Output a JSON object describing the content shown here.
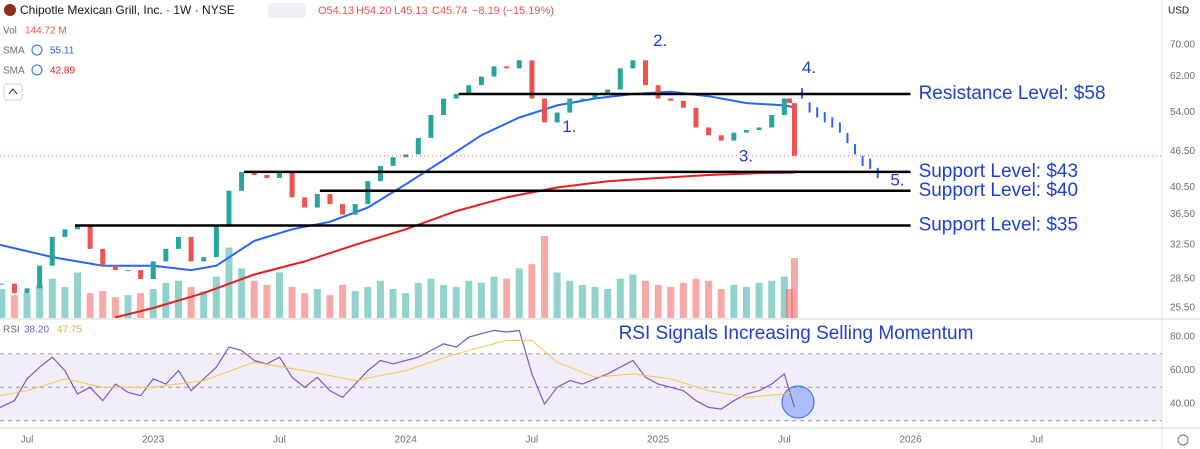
{
  "header": {
    "title": "Chipotle Mexican Grill, Inc. · 1W · NYSE",
    "open": "O54.13",
    "high": "H54.20",
    "low": "L45.13",
    "close": "C45.74",
    "change": "−8.19 (−15.19%)",
    "currency": "USD"
  },
  "chart_data": [
    {
      "type": "stock",
      "log_scale": true,
      "xlim": [
        2022.393,
        2026.996
      ],
      "xticks": [
        {
          "value": 2022.5,
          "label": "Jul"
        },
        {
          "value": 2023.0,
          "label": "2023"
        },
        {
          "value": 2023.5,
          "label": "Jul"
        },
        {
          "value": 2024.0,
          "label": "2024"
        },
        {
          "value": 2024.5,
          "label": "Jul"
        },
        {
          "value": 2025.0,
          "label": "2025"
        },
        {
          "value": 2025.5,
          "label": "Jul"
        },
        {
          "value": 2026.0,
          "label": "2026"
        },
        {
          "value": 2026.5,
          "label": "Jul"
        }
      ],
      "ylim": [
        24.54,
        83.2
      ],
      "yticks": [
        {
          "value": 70,
          "label": "70.00"
        },
        {
          "value": 62,
          "label": "62.00"
        },
        {
          "value": 54,
          "label": "54.00"
        },
        {
          "value": 46.5,
          "label": "46.50"
        },
        {
          "value": 40.5,
          "label": "40.50"
        },
        {
          "value": 36.5,
          "label": "36.50"
        },
        {
          "value": 32.5,
          "label": "32.50"
        },
        {
          "value": 28.5,
          "label": "28.50"
        },
        {
          "value": 25.5,
          "label": "25.50"
        }
      ],
      "up_color": "#26a69a",
      "down_color": "#ef5350",
      "x": [
        2022.4,
        2022.45,
        2022.5,
        2022.55,
        2022.6,
        2022.65,
        2022.7,
        2022.75,
        2022.8,
        2022.85,
        2022.9,
        2022.95,
        2023.0,
        2023.05,
        2023.1,
        2023.15,
        2023.2,
        2023.25,
        2023.3,
        2023.35,
        2023.4,
        2023.45,
        2023.5,
        2023.55,
        2023.6,
        2023.65,
        2023.7,
        2023.75,
        2023.8,
        2023.85,
        2023.9,
        2023.95,
        2024.0,
        2024.05,
        2024.1,
        2024.15,
        2024.2,
        2024.25,
        2024.3,
        2024.35,
        2024.4,
        2024.45,
        2024.5,
        2024.55,
        2024.6,
        2024.65,
        2024.7,
        2024.75,
        2024.8,
        2024.85,
        2024.9,
        2024.95,
        2025.0,
        2025.05,
        2025.1,
        2025.15,
        2025.2,
        2025.25,
        2025.3,
        2025.35,
        2025.4,
        2025.45,
        2025.5,
        2025.52,
        2025.54
      ],
      "values": [
        28,
        27,
        27.5,
        30,
        33.5,
        34.5,
        35,
        32,
        30,
        29.5,
        29.5,
        28.5,
        30.5,
        32,
        33.5,
        30.5,
        31,
        35,
        40,
        43,
        42.5,
        42,
        43,
        39,
        37.5,
        39.5,
        38,
        36.5,
        38,
        41.5,
        44,
        45.5,
        46,
        49,
        53.5,
        57,
        58,
        60,
        62,
        64.5,
        64,
        66,
        57,
        52,
        54,
        57,
        57,
        58,
        59,
        64,
        66,
        60,
        57,
        56.5,
        55,
        51,
        49.5,
        48.5,
        50,
        50.5,
        51,
        53.5,
        57,
        56,
        45.74
      ],
      "volume": {
        "name": "Vol",
        "value_label": "144.72 M",
        "values": [
          70,
          55,
          60,
          80,
          95,
          75,
          110,
          60,
          65,
          50,
          55,
          60,
          70,
          85,
          90,
          75,
          65,
          100,
          170,
          120,
          90,
          80,
          110,
          75,
          60,
          70,
          55,
          80,
          65,
          75,
          90,
          70,
          60,
          85,
          95,
          80,
          75,
          90,
          85,
          100,
          95,
          120,
          130,
          198,
          110,
          90,
          80,
          75,
          70,
          95,
          105,
          90,
          80,
          75,
          85,
          95,
          90,
          70,
          80,
          75,
          85,
          90,
          100,
          70,
          144.72
        ]
      },
      "indicators": [
        {
          "name": "SMA",
          "value_label": "55.11",
          "color": "#2962ff",
          "x": [
            2022.393,
            2022.6,
            2022.8,
            2023.0,
            2023.15,
            2023.25,
            2023.4,
            2023.55,
            2023.7,
            2023.85,
            2024.0,
            2024.15,
            2024.3,
            2024.45,
            2024.6,
            2024.75,
            2024.9,
            2025.05,
            2025.2,
            2025.35,
            2025.5,
            2025.54
          ],
          "values": [
            32.5,
            31,
            30,
            30,
            29.5,
            30,
            33,
            34.5,
            35.5,
            37.5,
            41,
            45,
            49.5,
            53,
            55.5,
            57,
            58,
            58.5,
            57.5,
            56,
            55.5,
            55.11
          ]
        },
        {
          "name": "SMA",
          "value_label": "42.89",
          "color": "#e91e1e",
          "x": [
            2022.85,
            2023.0,
            2023.2,
            2023.4,
            2023.6,
            2023.8,
            2024.0,
            2024.2,
            2024.4,
            2024.6,
            2024.8,
            2025.0,
            2025.2,
            2025.4,
            2025.54
          ],
          "values": [
            24.6,
            25.5,
            27,
            29,
            30.5,
            32.5,
            34.5,
            37,
            39,
            40.5,
            41.5,
            42,
            42.5,
            42.8,
            42.89
          ]
        }
      ],
      "projection": {
        "color": "#2962ff",
        "x": [
          2025.57,
          2025.6,
          2025.63,
          2025.66,
          2025.69,
          2025.72,
          2025.75,
          2025.78,
          2025.81,
          2025.84,
          2025.87
        ],
        "values": [
          57,
          54,
          53,
          52,
          51,
          50,
          48,
          46,
          44,
          43.5,
          42
        ]
      },
      "levels": [
        {
          "value": 58,
          "label": "Resistance Level: $58",
          "x_start": 2024.21
        },
        {
          "value": 43,
          "label": "Support Level: $43",
          "x_start": 2023.36
        },
        {
          "value": 40,
          "label": "Support Level: $40",
          "x_start": 2023.66
        },
        {
          "value": 35,
          "label": "Support Level: $35",
          "x_start": 2022.69
        }
      ],
      "level_end": 2026.0,
      "annotations": [
        {
          "text": "1.",
          "x": 2024.62,
          "y": 51
        },
        {
          "text": "2.",
          "x": 2024.98,
          "y": 71
        },
        {
          "text": "3.",
          "x": 2025.32,
          "y": 45.5
        },
        {
          "text": "4.",
          "x": 2025.57,
          "y": 64
        },
        {
          "text": "5.",
          "x": 2025.92,
          "y": 41.5
        }
      ]
    },
    {
      "type": "line",
      "title": "RSI Signals Increasing Selling Momentum",
      "name": "RSI",
      "ylim": [
        27.5,
        87.2
      ],
      "yticks": [
        {
          "value": 80,
          "label": "80.00"
        },
        {
          "value": 60,
          "label": "60.00"
        },
        {
          "value": 40,
          "label": "40.00"
        }
      ],
      "levels": [
        70,
        50,
        30
      ],
      "series": [
        {
          "name": "38.20",
          "color": "#7e57c2",
          "x": [
            2022.393,
            2022.45,
            2022.5,
            2022.55,
            2022.6,
            2022.65,
            2022.7,
            2022.75,
            2022.8,
            2022.85,
            2022.9,
            2022.95,
            2023.0,
            2023.05,
            2023.1,
            2023.15,
            2023.2,
            2023.25,
            2023.3,
            2023.35,
            2023.4,
            2023.45,
            2023.5,
            2023.55,
            2023.6,
            2023.65,
            2023.7,
            2023.75,
            2023.8,
            2023.85,
            2023.9,
            2023.95,
            2024.0,
            2024.05,
            2024.1,
            2024.15,
            2024.2,
            2024.25,
            2024.3,
            2024.35,
            2024.4,
            2024.45,
            2024.5,
            2024.55,
            2024.6,
            2024.65,
            2024.7,
            2024.75,
            2024.8,
            2024.85,
            2024.9,
            2024.95,
            2025.0,
            2025.05,
            2025.1,
            2025.15,
            2025.2,
            2025.25,
            2025.3,
            2025.35,
            2025.4,
            2025.45,
            2025.5,
            2025.54
          ],
          "values": [
            38,
            42,
            55,
            62,
            68,
            60,
            46,
            50,
            42,
            52,
            47,
            45,
            55,
            52,
            60,
            48,
            55,
            62,
            74,
            72,
            66,
            64,
            68,
            56,
            50,
            56,
            48,
            44,
            52,
            60,
            66,
            64,
            66,
            68,
            72,
            76,
            74,
            80,
            82,
            84,
            83,
            84,
            58,
            40,
            50,
            54,
            52,
            55,
            58,
            62,
            66,
            56,
            52,
            50,
            48,
            42,
            38,
            37,
            42,
            46,
            48,
            52,
            58,
            38.2
          ]
        },
        {
          "name": "47.75",
          "color": "#f5c542",
          "x": [
            2022.393,
            2022.5,
            2022.65,
            2022.8,
            2023.0,
            2023.2,
            2023.4,
            2023.6,
            2023.8,
            2024.0,
            2024.2,
            2024.4,
            2024.5,
            2024.6,
            2024.75,
            2024.9,
            2025.05,
            2025.2,
            2025.35,
            2025.5,
            2025.54
          ],
          "values": [
            45,
            48,
            55,
            50,
            50,
            54,
            65,
            60,
            54,
            60,
            70,
            78,
            78,
            65,
            56,
            58,
            55,
            48,
            44,
            46,
            47.75
          ]
        }
      ]
    }
  ]
}
